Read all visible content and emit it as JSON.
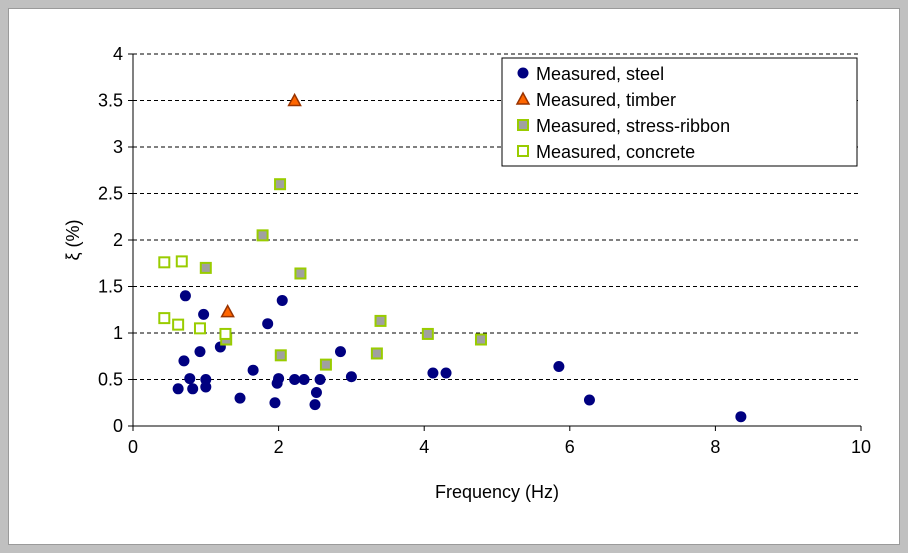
{
  "chart_data": {
    "type": "scatter",
    "title": "",
    "xlabel": "Frequency (Hz)",
    "ylabel": "ξ (%)",
    "xlim": [
      0,
      10
    ],
    "ylim": [
      0,
      4
    ],
    "xticks": [
      "0",
      "2",
      "4",
      "6",
      "8",
      "10"
    ],
    "yticks": [
      "0",
      "0.5",
      "1",
      "1.5",
      "2",
      "2.5",
      "3",
      "3.5",
      "4"
    ],
    "grid": "horizontal-dashed",
    "legend_position": "top-right",
    "series": [
      {
        "name": "Measured, steel",
        "marker": "circle",
        "color": "#000080",
        "points": [
          [
            0.62,
            0.4
          ],
          [
            0.7,
            0.7
          ],
          [
            0.72,
            1.4
          ],
          [
            0.78,
            0.51
          ],
          [
            0.82,
            0.4
          ],
          [
            0.92,
            0.8
          ],
          [
            0.97,
            1.2
          ],
          [
            1.0,
            0.5
          ],
          [
            1.0,
            0.42
          ],
          [
            1.2,
            0.85
          ],
          [
            1.47,
            0.3
          ],
          [
            1.65,
            0.6
          ],
          [
            1.85,
            1.1
          ],
          [
            1.95,
            0.25
          ],
          [
            1.98,
            0.46
          ],
          [
            2.0,
            0.51
          ],
          [
            2.05,
            1.35
          ],
          [
            2.22,
            0.5
          ],
          [
            2.35,
            0.5
          ],
          [
            2.5,
            0.23
          ],
          [
            2.52,
            0.36
          ],
          [
            2.57,
            0.5
          ],
          [
            2.85,
            0.8
          ],
          [
            3.0,
            0.53
          ],
          [
            4.12,
            0.57
          ],
          [
            4.3,
            0.57
          ],
          [
            5.85,
            0.64
          ],
          [
            6.27,
            0.28
          ],
          [
            8.35,
            0.1
          ]
        ]
      },
      {
        "name": "Measured, timber",
        "marker": "triangle",
        "color": "#ff6600",
        "stroke": "#993300",
        "points": [
          [
            1.3,
            1.23
          ],
          [
            2.22,
            3.5
          ]
        ]
      },
      {
        "name": "Measured, stress-ribbon",
        "marker": "square-filled",
        "color": "#a0a0a0",
        "stroke": "#99cc00",
        "points": [
          [
            1.0,
            1.7
          ],
          [
            1.28,
            0.93
          ],
          [
            1.78,
            2.05
          ],
          [
            2.02,
            2.6
          ],
          [
            2.03,
            0.76
          ],
          [
            2.3,
            1.64
          ],
          [
            2.65,
            0.66
          ],
          [
            3.35,
            0.78
          ],
          [
            3.4,
            1.13
          ],
          [
            4.05,
            0.99
          ],
          [
            4.78,
            0.93
          ]
        ]
      },
      {
        "name": "Measured, concrete",
        "marker": "square-open",
        "color": "#ffffff",
        "stroke": "#99cc00",
        "points": [
          [
            0.43,
            1.76
          ],
          [
            0.43,
            1.16
          ],
          [
            0.62,
            1.09
          ],
          [
            0.67,
            1.77
          ],
          [
            0.92,
            1.05
          ],
          [
            1.27,
            0.99
          ]
        ]
      }
    ]
  }
}
